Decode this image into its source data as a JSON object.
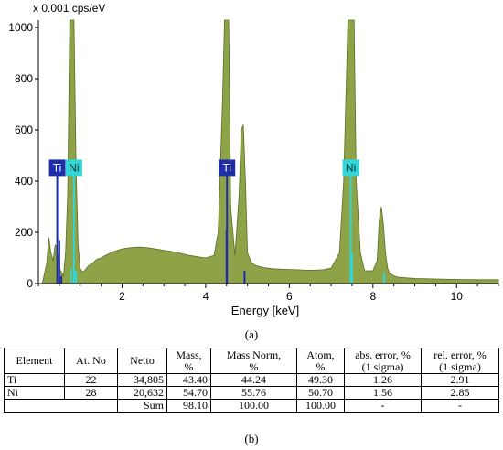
{
  "chart_data": {
    "type": "area",
    "y_unit_label": "x 0.001 cps/eV",
    "xlabel": "Energy [keV]",
    "xlim": [
      0.0,
      11.0
    ],
    "ylim": [
      0,
      1000
    ],
    "x_ticks": [
      "2",
      "4",
      "6",
      "8",
      "10"
    ],
    "y_ticks": [
      "0",
      "200",
      "400",
      "600",
      "800",
      "1000"
    ],
    "fill_color": "#8ea247",
    "edge_color": "#5a6e28",
    "spectrum": {
      "x": [
        0.1,
        0.2,
        0.25,
        0.3,
        0.35,
        0.4,
        0.45,
        0.5,
        0.6,
        0.65,
        0.7,
        0.75,
        0.8,
        0.85,
        0.9,
        0.95,
        1.0,
        1.05,
        1.1,
        1.2,
        1.3,
        1.4,
        1.5,
        1.6,
        1.8,
        2.0,
        2.2,
        2.4,
        2.6,
        2.8,
        3.0,
        3.2,
        3.4,
        3.6,
        3.8,
        4.0,
        4.2,
        4.3,
        4.4,
        4.45,
        4.5,
        4.55,
        4.6,
        4.7,
        4.8,
        4.85,
        4.9,
        4.95,
        5.0,
        5.1,
        5.2,
        5.4,
        5.6,
        5.8,
        6.0,
        6.2,
        6.4,
        6.6,
        6.8,
        7.0,
        7.2,
        7.3,
        7.4,
        7.45,
        7.5,
        7.55,
        7.6,
        7.7,
        7.8,
        8.0,
        8.1,
        8.15,
        8.2,
        8.25,
        8.3,
        8.35,
        8.4,
        8.5,
        8.6,
        8.8,
        9.0,
        9.5,
        10.0,
        10.5,
        11.0
      ],
      "y": [
        5,
        80,
        180,
        120,
        90,
        150,
        140,
        60,
        30,
        120,
        350,
        1100,
        1100,
        1100,
        450,
        150,
        60,
        45,
        50,
        70,
        80,
        95,
        100,
        110,
        125,
        135,
        140,
        142,
        140,
        135,
        130,
        125,
        118,
        110,
        105,
        100,
        110,
        200,
        700,
        1100,
        1100,
        1100,
        300,
        110,
        350,
        600,
        620,
        400,
        120,
        80,
        70,
        62,
        58,
        56,
        55,
        54,
        52,
        52,
        54,
        60,
        120,
        400,
        1100,
        1100,
        1100,
        1100,
        400,
        120,
        50,
        50,
        90,
        250,
        300,
        230,
        120,
        60,
        40,
        30,
        25,
        22,
        20,
        18,
        16,
        15,
        15
      ]
    },
    "markers": [
      {
        "label": "Ti",
        "energy": 0.45,
        "height": 420,
        "color": "#1f2ea8"
      },
      {
        "label": "Ni",
        "energy": 0.85,
        "height": 420,
        "color": "#33d6d6"
      },
      {
        "label": "Ti",
        "energy": 4.51,
        "height": 420,
        "color": "#1f2ea8"
      },
      {
        "label": "Ni",
        "energy": 7.47,
        "height": 420,
        "color": "#33d6d6"
      }
    ],
    "minor_lines": [
      {
        "energy": 0.5,
        "height": 170,
        "color": "#1f2ea8"
      },
      {
        "energy": 0.55,
        "height": 30,
        "color": "#1f2ea8"
      },
      {
        "energy": 0.78,
        "height": 60,
        "color": "#33d6d6"
      },
      {
        "energy": 0.9,
        "height": 50,
        "color": "#33d6d6"
      },
      {
        "energy": 4.5,
        "height": 210,
        "color": "#1f2ea8"
      },
      {
        "energy": 4.93,
        "height": 50,
        "color": "#1f2ea8"
      },
      {
        "energy": 7.5,
        "height": 120,
        "color": "#33d6d6"
      },
      {
        "energy": 8.27,
        "height": 40,
        "color": "#33d6d6"
      }
    ]
  },
  "captions": {
    "a": "(a)",
    "b": "(b)"
  },
  "table": {
    "headers": [
      [
        "Element"
      ],
      [
        "At. No"
      ],
      [
        "Netto"
      ],
      [
        "Mass,",
        "%"
      ],
      [
        "Mass Norm,",
        "%"
      ],
      [
        "Atom,",
        "%"
      ],
      [
        "abs. error, %",
        "(1 sigma)"
      ],
      [
        "rel. error, %",
        "(1 sigma)"
      ]
    ],
    "rows": [
      [
        "Ti",
        "22",
        "34,805",
        "43.40",
        "44.24",
        "49.30",
        "1.26",
        "2.91"
      ],
      [
        "Ni",
        "28",
        "20,632",
        "54.70",
        "55.76",
        "50.70",
        "1.56",
        "2.85"
      ]
    ],
    "sum_row": {
      "label": "Sum",
      "mass": "98.10",
      "mass_norm": "100.00",
      "atom": "100.00",
      "abs_error": "-",
      "rel_error": "-"
    }
  }
}
